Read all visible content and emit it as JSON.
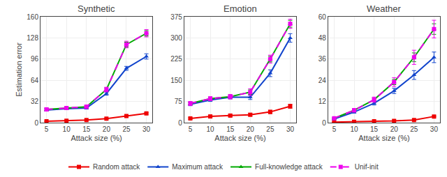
{
  "chart_data": [
    {
      "type": "line",
      "title": "Synthetic",
      "xlabel": "Attack size (%)",
      "ylabel": "Estimation error",
      "x": [
        5,
        10,
        15,
        20,
        25,
        30
      ],
      "xlim": [
        3.5,
        31.5
      ],
      "xticks": [
        5,
        10,
        15,
        20,
        25,
        30
      ],
      "ylim": [
        0,
        160
      ],
      "yticks": [
        0,
        32,
        64,
        96,
        128,
        160
      ],
      "grid": true,
      "legend": "bottom",
      "series": [
        {
          "name": "Random attack",
          "color": "#ee0000",
          "marker": "square",
          "line_style": "solid",
          "values": [
            2,
            3,
            4,
            6,
            10,
            14
          ],
          "yerr": [
            0.4,
            0.4,
            0.5,
            0.7,
            1.0,
            1.2
          ]
        },
        {
          "name": "Maximum attack",
          "color": "#1144cc",
          "marker": "triangle-up",
          "line_style": "solid",
          "values": [
            19,
            21,
            22,
            44,
            82,
            100
          ],
          "yerr": [
            1.5,
            1.5,
            1.5,
            2.5,
            3.0,
            4.0
          ]
        },
        {
          "name": "Full-knowledge attack",
          "color": "#00aa00",
          "marker": "triangle-up",
          "line_style": "solid",
          "values": [
            20,
            22,
            24,
            50,
            118,
            135
          ],
          "yerr": [
            1.5,
            1.5,
            1.5,
            2.5,
            3.5,
            4.0
          ]
        },
        {
          "name": "Unif-init",
          "color": "#ee00ee",
          "marker": "square",
          "line_style": "dashed",
          "values": [
            20,
            22,
            24,
            50,
            118,
            135
          ],
          "yerr": [
            2.5,
            2.5,
            2.5,
            3.5,
            5.0,
            5.5
          ]
        }
      ]
    },
    {
      "type": "line",
      "title": "Emotion",
      "xlabel": "Attack size (%)",
      "x": [
        5,
        10,
        15,
        20,
        25,
        30
      ],
      "xlim": [
        3.5,
        31.5
      ],
      "xticks": [
        5,
        10,
        15,
        20,
        25,
        30
      ],
      "ylim": [
        0,
        375
      ],
      "yticks": [
        0,
        75,
        150,
        225,
        300,
        375
      ],
      "grid": true,
      "series": [
        {
          "name": "Random attack",
          "color": "#ee0000",
          "marker": "square",
          "line_style": "solid",
          "values": [
            15,
            22,
            25,
            28,
            38,
            58
          ],
          "yerr": [
            3,
            4,
            4,
            5,
            6,
            7
          ]
        },
        {
          "name": "Maximum attack",
          "color": "#1144cc",
          "marker": "triangle-up",
          "line_style": "solid",
          "values": [
            65,
            80,
            90,
            90,
            175,
            300
          ],
          "yerr": [
            5,
            5,
            6,
            8,
            12,
            15
          ]
        },
        {
          "name": "Full-knowledge attack",
          "color": "#00aa00",
          "marker": "triangle-up",
          "line_style": "solid",
          "values": [
            68,
            85,
            92,
            108,
            225,
            350
          ],
          "yerr": [
            5,
            5,
            6,
            8,
            10,
            12
          ]
        },
        {
          "name": "Unif-init",
          "color": "#ee00ee",
          "marker": "square",
          "line_style": "dashed",
          "values": [
            68,
            85,
            92,
            108,
            225,
            350
          ],
          "yerr": [
            7,
            7,
            8,
            12,
            14,
            16
          ]
        }
      ]
    },
    {
      "type": "line",
      "title": "Weather",
      "xlabel": "Attack size (%)",
      "x": [
        5,
        10,
        15,
        20,
        25,
        30
      ],
      "xlim": [
        3.5,
        31.5
      ],
      "xticks": [
        5,
        10,
        15,
        20,
        25,
        30
      ],
      "ylim": [
        0,
        60
      ],
      "yticks": [
        0,
        12,
        24,
        36,
        48,
        60
      ],
      "grid": true,
      "series": [
        {
          "name": "Random attack",
          "color": "#ee0000",
          "marker": "square",
          "line_style": "solid",
          "values": [
            0.3,
            0.5,
            0.8,
            1.0,
            1.5,
            3.5
          ],
          "yerr": [
            0.05,
            0.05,
            0.1,
            0.15,
            0.2,
            0.3
          ]
        },
        {
          "name": "Maximum attack",
          "color": "#1144cc",
          "marker": "triangle-up",
          "line_style": "solid",
          "values": [
            2.0,
            6.0,
            11.0,
            18,
            27,
            37
          ],
          "yerr": [
            0.3,
            0.6,
            1.0,
            1.5,
            2.5,
            3.0
          ]
        },
        {
          "name": "Full-knowledge attack",
          "color": "#00aa00",
          "marker": "triangle-up",
          "line_style": "solid",
          "values": [
            2.5,
            7.0,
            13.0,
            23,
            37,
            53
          ],
          "yerr": [
            0.3,
            0.6,
            1.0,
            1.5,
            2.5,
            3.0
          ]
        },
        {
          "name": "Unif-init",
          "color": "#ee00ee",
          "marker": "square",
          "line_style": "dashed",
          "values": [
            2.5,
            7.0,
            13.0,
            23,
            37,
            53
          ],
          "yerr": [
            0.5,
            1.0,
            1.5,
            2.5,
            4.0,
            5.0
          ]
        }
      ]
    }
  ]
}
